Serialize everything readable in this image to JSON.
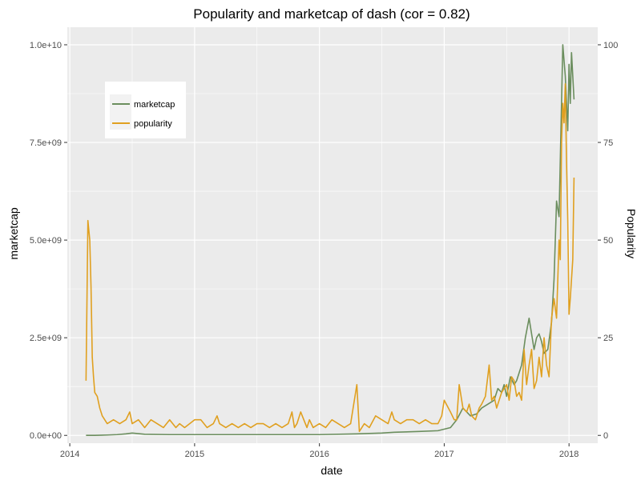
{
  "chart_data": {
    "type": "line",
    "title": "Popularity and marketcap of dash (cor = 0.82)",
    "xlabel": "date",
    "ylabel": "marketcap",
    "ylabel_right": "Popularity",
    "xlim": [
      2013.98,
      2018.23
    ],
    "ylim": [
      -200000000,
      10450000000
    ],
    "ylim_right": [
      -2,
      104.5
    ],
    "x_ticks": [
      2014,
      2015,
      2016,
      2017,
      2018
    ],
    "x_tick_labels": [
      "2014",
      "2015",
      "2016",
      "2017",
      "2018"
    ],
    "y_ticks": [
      0,
      2500000000,
      5000000000,
      7500000000,
      10000000000
    ],
    "y_tick_labels": [
      "0.0e+00",
      "2.5e+09",
      "5.0e+09",
      "7.5e+09",
      "1.0e+10"
    ],
    "y_right_ticks": [
      0,
      25,
      50,
      75,
      100
    ],
    "y_right_tick_labels": [
      "0",
      "25",
      "50",
      "75",
      "100"
    ],
    "grid": true,
    "legend_position": "top-left",
    "colors": {
      "marketcap": "#6b8e5e",
      "popularity": "#e0a020",
      "panel": "#ebebeb",
      "grid": "#ffffff"
    },
    "series": [
      {
        "name": "marketcap",
        "axis": "left",
        "color": "#6b8e5e",
        "x": [
          2014.13,
          2014.2,
          2014.3,
          2014.38,
          2014.45,
          2014.5,
          2014.6,
          2014.8,
          2015.0,
          2015.5,
          2016.0,
          2016.3,
          2016.5,
          2016.6,
          2016.8,
          2016.95,
          2017.05,
          2017.1,
          2017.15,
          2017.18,
          2017.21,
          2017.26,
          2017.3,
          2017.35,
          2017.4,
          2017.43,
          2017.46,
          2017.48,
          2017.5,
          2017.53,
          2017.56,
          2017.58,
          2017.6,
          2017.62,
          2017.65,
          2017.68,
          2017.7,
          2017.72,
          2017.74,
          2017.76,
          2017.78,
          2017.8,
          2017.83,
          2017.86,
          2017.88,
          2017.9,
          2017.92,
          2017.94,
          2017.95,
          2017.97,
          2017.99,
          2018.0,
          2018.01,
          2018.02,
          2018.03,
          2018.04
        ],
        "values": [
          0,
          0,
          10000000,
          20000000,
          40000000,
          60000000,
          30000000,
          20000000,
          20000000,
          20000000,
          20000000,
          40000000,
          60000000,
          80000000,
          100000000,
          120000000,
          200000000,
          400000000,
          700000000,
          600000000,
          500000000,
          550000000,
          700000000,
          800000000,
          900000000,
          1200000000,
          1100000000,
          1300000000,
          1000000000,
          1500000000,
          1300000000,
          1400000000,
          1600000000,
          1800000000,
          2500000000,
          3000000000,
          2600000000,
          2200000000,
          2500000000,
          2600000000,
          2400000000,
          2100000000,
          2200000000,
          2900000000,
          4000000000,
          6000000000,
          5600000000,
          8500000000,
          10000000000,
          9200000000,
          7800000000,
          9500000000,
          8500000000,
          9800000000,
          9200000000,
          8600000000
        ]
      },
      {
        "name": "popularity",
        "axis": "right",
        "color": "#e0a020",
        "x": [
          2014.13,
          2014.145,
          2014.16,
          2014.17,
          2014.18,
          2014.19,
          2014.2,
          2014.22,
          2014.24,
          2014.26,
          2014.3,
          2014.35,
          2014.4,
          2014.45,
          2014.48,
          2014.5,
          2014.55,
          2014.6,
          2014.65,
          2014.7,
          2014.75,
          2014.8,
          2014.85,
          2014.88,
          2014.92,
          2014.96,
          2015.0,
          2015.05,
          2015.1,
          2015.15,
          2015.18,
          2015.2,
          2015.25,
          2015.3,
          2015.35,
          2015.4,
          2015.45,
          2015.5,
          2015.55,
          2015.6,
          2015.65,
          2015.7,
          2015.75,
          2015.78,
          2015.8,
          2015.82,
          2015.85,
          2015.9,
          2015.92,
          2015.95,
          2016.0,
          2016.05,
          2016.1,
          2016.15,
          2016.2,
          2016.25,
          2016.3,
          2016.32,
          2016.34,
          2016.36,
          2016.4,
          2016.45,
          2016.5,
          2016.55,
          2016.58,
          2016.6,
          2016.65,
          2016.7,
          2016.75,
          2016.8,
          2016.85,
          2016.9,
          2016.95,
          2016.98,
          2017.0,
          2017.05,
          2017.08,
          2017.1,
          2017.12,
          2017.15,
          2017.18,
          2017.2,
          2017.22,
          2017.25,
          2017.28,
          2017.3,
          2017.33,
          2017.36,
          2017.38,
          2017.4,
          2017.42,
          2017.44,
          2017.46,
          2017.48,
          2017.5,
          2017.52,
          2017.54,
          2017.56,
          2017.58,
          2017.6,
          2017.62,
          2017.64,
          2017.66,
          2017.68,
          2017.7,
          2017.72,
          2017.74,
          2017.76,
          2017.78,
          2017.8,
          2017.82,
          2017.84,
          2017.86,
          2017.88,
          2017.9,
          2017.92,
          2017.93,
          2017.94,
          2017.95,
          2017.96,
          2017.97,
          2017.98,
          2017.99,
          2018.0,
          2018.01,
          2018.02,
          2018.03,
          2018.04
        ],
        "values": [
          14,
          55,
          50,
          38,
          20,
          15,
          11,
          10,
          7,
          5,
          3,
          4,
          3,
          4,
          6,
          3,
          4,
          2,
          4,
          3,
          2,
          4,
          2,
          3,
          2,
          3,
          4,
          4,
          2,
          3,
          5,
          3,
          2,
          3,
          2,
          3,
          2,
          3,
          3,
          2,
          3,
          2,
          3,
          6,
          2,
          3,
          6,
          2,
          4,
          2,
          3,
          2,
          4,
          3,
          2,
          3,
          13,
          1,
          2,
          3,
          2,
          5,
          4,
          3,
          6,
          4,
          3,
          4,
          4,
          3,
          4,
          3,
          3,
          5,
          9,
          6,
          4,
          4,
          13,
          7,
          6,
          8,
          5,
          4,
          7,
          8,
          10,
          18,
          9,
          10,
          7,
          9,
          11,
          12,
          13,
          9,
          15,
          14,
          10,
          11,
          9,
          22,
          13,
          18,
          22,
          12,
          14,
          20,
          15,
          25,
          18,
          15,
          30,
          35,
          30,
          50,
          45,
          75,
          85,
          80,
          90,
          70,
          55,
          31,
          35,
          40,
          45,
          66
        ]
      }
    ]
  }
}
